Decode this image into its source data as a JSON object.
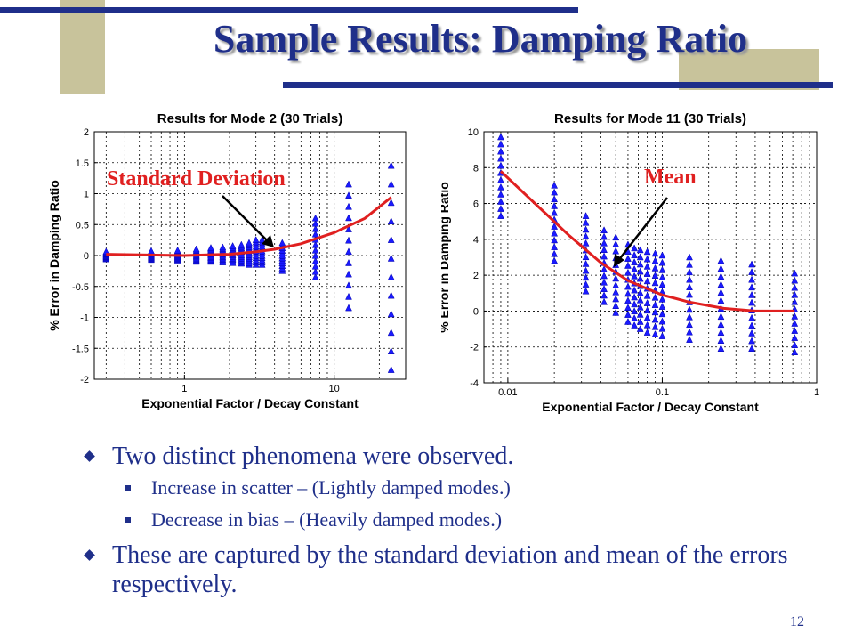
{
  "slide": {
    "title": "Sample Results: Damping Ratio",
    "page_number": "12",
    "colors": {
      "title": "#1f2f8a",
      "accent_bar": "#1f2f8a",
      "tan_block": "#c8c39b",
      "marker": "#1a1aff",
      "curve": "#e02020",
      "annotation": "#e02020"
    }
  },
  "bullets": [
    {
      "level": 1,
      "text": "Two distinct phenomena were observed."
    },
    {
      "level": 2,
      "text": "Increase in scatter – (Lightly damped modes.)"
    },
    {
      "level": 2,
      "text": "Decrease in bias – (Heavily damped modes.)"
    },
    {
      "level": 1,
      "text": "These are captured by the standard deviation  and mean of the errors respectively."
    }
  ],
  "chart_data": [
    {
      "type": "scatter",
      "title": "Results for Mode 2 (30 Trials)",
      "xlabel": "Exponential Factor / Decay Constant",
      "ylabel": "% Error in Damping Ratio",
      "x_scale": "log",
      "xlim": [
        0.25,
        30
      ],
      "ylim": [
        -2,
        2
      ],
      "x_ticks": [
        1,
        10
      ],
      "x_tick_labels": [
        "1",
        "10"
      ],
      "y_ticks": [
        -2,
        -1.5,
        -1,
        -0.5,
        0,
        0.5,
        1,
        1.5,
        2
      ],
      "y_tick_labels": [
        "-2",
        "-1.5",
        "-1",
        "-0.5",
        "0",
        "0.5",
        "1",
        "1.5",
        "2"
      ],
      "grid": true,
      "annotation": "Standard Deviation",
      "series": [
        {
          "marker": "triangle",
          "points": [
            {
              "x": 0.3,
              "lo": -0.06,
              "hi": 0.06
            },
            {
              "x": 0.6,
              "lo": -0.07,
              "hi": 0.07
            },
            {
              "x": 0.9,
              "lo": -0.08,
              "hi": 0.08
            },
            {
              "x": 1.2,
              "lo": -0.1,
              "hi": 0.1
            },
            {
              "x": 1.5,
              "lo": -0.1,
              "hi": 0.12
            },
            {
              "x": 1.8,
              "lo": -0.11,
              "hi": 0.13
            },
            {
              "x": 2.1,
              "lo": -0.12,
              "hi": 0.15
            },
            {
              "x": 2.4,
              "lo": -0.13,
              "hi": 0.17
            },
            {
              "x": 2.7,
              "lo": -0.15,
              "hi": 0.2
            },
            {
              "x": 3.0,
              "lo": -0.15,
              "hi": 0.25
            },
            {
              "x": 3.3,
              "lo": -0.15,
              "hi": 0.25
            },
            {
              "x": 4.5,
              "lo": -0.25,
              "hi": 0.2
            },
            {
              "x": 7.5,
              "lo": -0.35,
              "hi": 0.6
            },
            {
              "x": 12.5,
              "lo": -0.85,
              "hi": 1.15
            },
            {
              "x": 24,
              "lo": -1.85,
              "hi": 1.45
            }
          ]
        },
        {
          "name": "",
          "type": "line",
          "x": [
            0.3,
            1,
            2,
            3,
            4,
            6,
            10,
            16,
            24
          ],
          "y": [
            0.02,
            0.0,
            0.02,
            0.06,
            0.1,
            0.19,
            0.37,
            0.6,
            0.94
          ]
        }
      ]
    },
    {
      "type": "scatter",
      "title": "Results for Mode 11 (30 Trials)",
      "xlabel": "Exponential Factor / Decay Constant",
      "ylabel": "% Error in Damping Ratio",
      "x_scale": "log",
      "xlim": [
        0.007,
        1
      ],
      "ylim": [
        -4,
        10
      ],
      "x_ticks": [
        0.01,
        0.1,
        1
      ],
      "x_tick_labels": [
        "0.01",
        "0.1",
        "1"
      ],
      "y_ticks": [
        -4,
        -2,
        0,
        2,
        4,
        6,
        8,
        10
      ],
      "y_tick_labels": [
        "-4",
        "-2",
        "0",
        "2",
        "4",
        "6",
        "8",
        "10"
      ],
      "grid": true,
      "annotation": "Mean",
      "series": [
        {
          "marker": "triangle",
          "points": [
            {
              "x": 0.009,
              "lo": 5.3,
              "hi": 9.7
            },
            {
              "x": 0.02,
              "lo": 2.8,
              "hi": 7.0
            },
            {
              "x": 0.032,
              "lo": 1.1,
              "hi": 5.3
            },
            {
              "x": 0.042,
              "lo": 0.5,
              "hi": 4.5
            },
            {
              "x": 0.05,
              "lo": -0.1,
              "hi": 4.1
            },
            {
              "x": 0.06,
              "lo": -0.6,
              "hi": 3.7
            },
            {
              "x": 0.066,
              "lo": -0.8,
              "hi": 3.5
            },
            {
              "x": 0.072,
              "lo": -1.0,
              "hi": 3.4
            },
            {
              "x": 0.08,
              "lo": -1.2,
              "hi": 3.3
            },
            {
              "x": 0.09,
              "lo": -1.3,
              "hi": 3.2
            },
            {
              "x": 0.1,
              "lo": -1.4,
              "hi": 3.1
            },
            {
              "x": 0.15,
              "lo": -1.6,
              "hi": 3.0
            },
            {
              "x": 0.24,
              "lo": -2.1,
              "hi": 2.8
            },
            {
              "x": 0.38,
              "lo": -2.1,
              "hi": 2.6
            },
            {
              "x": 0.72,
              "lo": -2.3,
              "hi": 2.1
            }
          ]
        },
        {
          "name": "",
          "type": "line",
          "x": [
            0.009,
            0.015,
            0.025,
            0.04,
            0.06,
            0.1,
            0.15,
            0.25,
            0.4,
            0.72
          ],
          "y": [
            7.8,
            6.0,
            4.2,
            2.7,
            1.7,
            0.9,
            0.5,
            0.15,
            0.0,
            0.0
          ]
        }
      ]
    }
  ]
}
